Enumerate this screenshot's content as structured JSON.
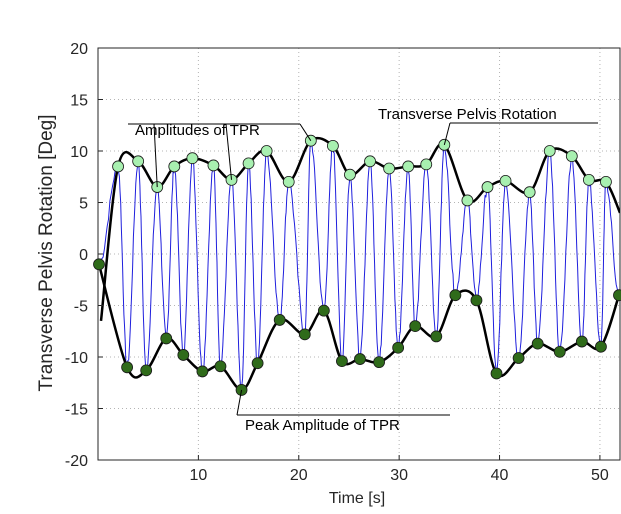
{
  "chart_data": {
    "type": "line",
    "xlabel": "Time [s]",
    "ylabel": "Transverse Pelvis Rotation [Deg]",
    "xlim": [
      0,
      52
    ],
    "ylim": [
      -20,
      20
    ],
    "xticks": [
      10,
      20,
      30,
      40,
      50
    ],
    "yticks": [
      20,
      15,
      10,
      5,
      0,
      -5,
      -10,
      -15,
      -20
    ],
    "grid": "dotted",
    "annotations": {
      "amplitudes": "Amplitudes of TPR",
      "signal": "Transverse Pelvis Rotation",
      "peak": "Peak Amplitude of TPR"
    },
    "upper_peaks": {
      "x": [
        2.0,
        4.0,
        5.9,
        7.6,
        9.4,
        11.5,
        13.3,
        15.0,
        16.8,
        19.0,
        21.2,
        23.4,
        25.1,
        27.1,
        29.0,
        30.9,
        32.7,
        34.5,
        36.8,
        38.8,
        40.6,
        43.0,
        45.0,
        47.2,
        48.9,
        50.6
      ],
      "y": [
        8.5,
        9.0,
        6.5,
        8.5,
        9.3,
        8.6,
        7.2,
        8.8,
        10.0,
        7.0,
        11.0,
        10.5,
        7.7,
        9.0,
        8.3,
        8.5,
        8.7,
        10.6,
        5.2,
        6.5,
        7.1,
        6.0,
        10.0,
        9.5,
        7.2,
        7.0
      ]
    },
    "lower_peaks": {
      "x": [
        0.1,
        2.9,
        4.8,
        6.8,
        8.5,
        10.4,
        12.2,
        14.3,
        15.9,
        18.1,
        20.6,
        22.5,
        24.3,
        26.1,
        28.0,
        29.9,
        31.6,
        33.7,
        35.6,
        37.7,
        39.7,
        41.9,
        43.8,
        46.0,
        48.2,
        50.1,
        51.9
      ],
      "y": [
        -1.0,
        -11.0,
        -11.3,
        -8.2,
        -9.8,
        -11.4,
        -10.9,
        -13.2,
        -10.6,
        -6.4,
        -7.8,
        -5.5,
        -10.4,
        -10.2,
        -10.5,
        -9.1,
        -7.0,
        -8.0,
        -4.0,
        -4.5,
        -11.6,
        -10.1,
        -8.7,
        -9.5,
        -8.5,
        -9.0,
        -4.0
      ]
    },
    "series": [
      {
        "color": "#1f1fdd",
        "role": "signal"
      },
      {
        "color": "#000000",
        "role": "envelope"
      }
    ],
    "marker_colors": {
      "upper": "#a8f0b0",
      "lower": "#2f6b1a"
    }
  }
}
